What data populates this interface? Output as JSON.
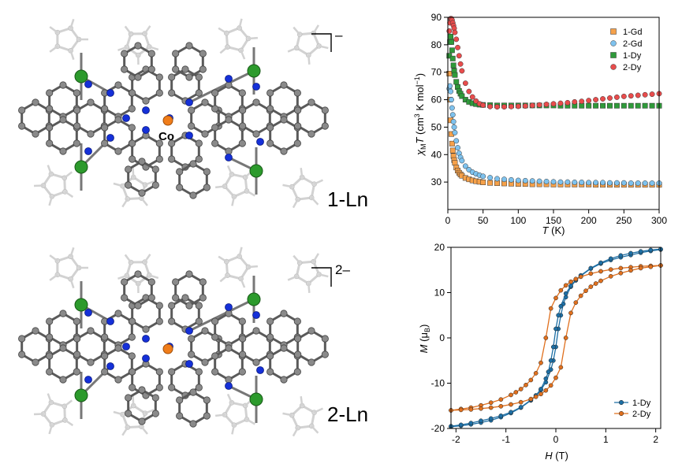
{
  "structures": [
    {
      "label": "1-Ln",
      "charge": "–",
      "atom_label": "Co"
    },
    {
      "label": "2-Ln",
      "charge": "2–"
    }
  ],
  "colors": {
    "carbon": "#7a7a7a",
    "carbon_light": "#c8c8c8",
    "nitrogen": "#1530d8",
    "cobalt": "#f07d1a",
    "lanthanide": "#2c9a2c",
    "gd1": "#f6a14a",
    "gd2": "#7ec2ee",
    "dy1": "#2f9a3a",
    "dy2": "#e84c4c",
    "hyst1": "#1d6fa5",
    "hyst2": "#e0701e"
  },
  "chart_data": [
    {
      "type": "scatter",
      "xlabel": "T (K)",
      "ylabel": "χMT (cm3 K mol−1)",
      "xlim": [
        0,
        300
      ],
      "ylim": [
        20,
        90
      ],
      "xticks": [
        0,
        50,
        100,
        150,
        200,
        250,
        300
      ],
      "yticks": [
        30,
        40,
        50,
        60,
        70,
        80,
        90
      ],
      "legend": "top-right",
      "series": [
        {
          "name": "1-Gd",
          "marker": "square",
          "color": "#f6a14a",
          "x": [
            2,
            3,
            4,
            5,
            6,
            7,
            8,
            9,
            10,
            12,
            14,
            16,
            18,
            20,
            25,
            30,
            35,
            40,
            45,
            50,
            60,
            70,
            80,
            90,
            100,
            110,
            120,
            130,
            140,
            150,
            160,
            170,
            180,
            190,
            200,
            210,
            220,
            230,
            240,
            250,
            260,
            270,
            280,
            290,
            300
          ],
          "y": [
            69.5,
            60,
            52.5,
            47.5,
            44,
            41.5,
            39.5,
            38,
            37,
            35.3,
            34.2,
            33.4,
            32.8,
            32.3,
            31.5,
            31,
            30.6,
            30.3,
            30.1,
            29.9,
            29.7,
            29.6,
            29.5,
            29.4,
            29.3,
            29.3,
            29.2,
            29.2,
            29.2,
            29.1,
            29.1,
            29.1,
            29.1,
            29.1,
            29.1,
            29,
            29,
            29,
            29,
            29,
            29,
            29,
            29,
            29,
            29
          ]
        },
        {
          "name": "2-Gd",
          "marker": "circle",
          "color": "#7ec2ee",
          "x": [
            2,
            3,
            4,
            5,
            6,
            7,
            8,
            9,
            10,
            12,
            14,
            16,
            18,
            20,
            25,
            30,
            35,
            40,
            45,
            50,
            60,
            70,
            80,
            90,
            100,
            110,
            120,
            130,
            140,
            150,
            160,
            170,
            180,
            190,
            200,
            210,
            220,
            230,
            240,
            250,
            260,
            270,
            280,
            290,
            300
          ],
          "y": [
            64,
            65,
            63,
            60,
            57,
            54.5,
            52,
            50,
            48,
            45,
            42.5,
            40.5,
            39,
            37.8,
            35.8,
            34.5,
            33.6,
            33,
            32.5,
            32.1,
            31.6,
            31.2,
            31,
            30.8,
            30.6,
            30.5,
            30.4,
            30.3,
            30.2,
            30.1,
            30,
            30,
            29.9,
            29.9,
            29.8,
            29.8,
            29.8,
            29.7,
            29.7,
            29.7,
            29.6,
            29.6,
            29.6,
            29.6,
            29.6
          ]
        },
        {
          "name": "1-Dy",
          "marker": "square",
          "color": "#2f9a3a",
          "x": [
            2,
            3,
            4,
            5,
            6,
            7,
            8,
            9,
            10,
            12,
            14,
            16,
            18,
            20,
            25,
            30,
            35,
            40,
            45,
            50,
            60,
            70,
            80,
            90,
            100,
            110,
            120,
            130,
            140,
            150,
            160,
            170,
            180,
            190,
            200,
            210,
            220,
            230,
            240,
            250,
            260,
            270,
            280,
            290,
            300
          ],
          "y": [
            76,
            81,
            83,
            81,
            78,
            75,
            72.5,
            70.5,
            69,
            66.5,
            64.6,
            63.2,
            62.2,
            61.3,
            60,
            59.2,
            58.7,
            58.4,
            58.2,
            58.1,
            58,
            57.9,
            57.9,
            57.9,
            57.9,
            57.9,
            57.9,
            57.9,
            57.9,
            57.9,
            57.8,
            57.8,
            57.8,
            57.8,
            57.8,
            57.8,
            57.8,
            57.8,
            57.8,
            57.8,
            57.8,
            57.8,
            57.8,
            57.8,
            57.8
          ]
        },
        {
          "name": "2-Dy",
          "marker": "circle",
          "color": "#e84c4c",
          "x": [
            2,
            3,
            4,
            5,
            6,
            7,
            8,
            9,
            10,
            12,
            14,
            16,
            18,
            20,
            25,
            30,
            35,
            40,
            45,
            50,
            60,
            70,
            80,
            90,
            100,
            110,
            120,
            130,
            140,
            150,
            160,
            170,
            180,
            190,
            200,
            210,
            220,
            230,
            240,
            250,
            260,
            270,
            280,
            290,
            300
          ],
          "y": [
            85,
            88,
            89.5,
            89.5,
            89,
            88,
            87,
            86,
            84.5,
            82,
            79,
            76,
            73,
            70.5,
            66,
            63,
            61,
            59.5,
            58.5,
            58,
            57.5,
            57.4,
            57.4,
            57.5,
            57.6,
            57.7,
            57.9,
            58.1,
            58.3,
            58.5,
            58.7,
            58.9,
            59.2,
            59.4,
            59.7,
            60,
            60.3,
            60.6,
            60.9,
            61.2,
            61.4,
            61.6,
            61.8,
            62,
            62.2
          ]
        }
      ]
    },
    {
      "type": "line",
      "xlabel": "H (T)",
      "ylabel": "M (μB)",
      "xlim": [
        -2.1,
        2.1
      ],
      "ylim": [
        -20,
        20
      ],
      "xticks": [
        -2,
        -1,
        0,
        1,
        2
      ],
      "yticks": [
        -20,
        -10,
        0,
        10,
        20
      ],
      "legend": "bottom-right",
      "series": [
        {
          "name": "1-Dy",
          "marker": "circle",
          "color": "#1d6fa5",
          "descending": {
            "x": [
              2.1,
              1.9,
              1.7,
              1.5,
              1.3,
              1.1,
              0.9,
              0.7,
              0.5,
              0.4,
              0.3,
              0.2,
              0.15,
              0.1,
              0.05,
              0,
              -0.05,
              -0.1,
              -0.2,
              -0.3,
              -0.4,
              -0.5,
              -0.7,
              -0.9,
              -1.1,
              -1.3,
              -1.5,
              -1.7,
              -1.9,
              -2.1
            ],
            "y": [
              19.5,
              19.2,
              18.8,
              18.3,
              17.8,
              17.2,
              16.4,
              15.3,
              13.7,
              12.7,
              11.3,
              9,
              7.5,
              5,
              2,
              -2,
              -5,
              -7,
              -9.8,
              -11.5,
              -12.8,
              -13.8,
              -15.4,
              -16.6,
              -17.5,
              -18.2,
              -18.7,
              -19.1,
              -19.4,
              -19.6
            ]
          },
          "ascending": {
            "x": [
              -2.1,
              -1.9,
              -1.7,
              -1.5,
              -1.3,
              -1.1,
              -0.9,
              -0.7,
              -0.5,
              -0.4,
              -0.3,
              -0.2,
              -0.15,
              -0.1,
              -0.05,
              0,
              0.05,
              0.1,
              0.2,
              0.3,
              0.4,
              0.5,
              0.7,
              0.9,
              1.1,
              1.3,
              1.5,
              1.7,
              1.9,
              2.1
            ],
            "y": [
              -19.5,
              -19.2,
              -18.8,
              -18.3,
              -17.8,
              -17.2,
              -16.4,
              -15.3,
              -13.7,
              -12.7,
              -11.3,
              -9,
              -7.5,
              -5,
              -2,
              2,
              5,
              7,
              9.8,
              11.5,
              12.8,
              13.8,
              15.4,
              16.6,
              17.5,
              18.2,
              18.7,
              19.1,
              19.4,
              19.6
            ]
          }
        },
        {
          "name": "2-Dy",
          "marker": "circle",
          "color": "#e0701e",
          "descending": {
            "x": [
              2.1,
              1.9,
              1.7,
              1.5,
              1.3,
              1.1,
              0.9,
              0.7,
              0.5,
              0.4,
              0.3,
              0.2,
              0.1,
              0,
              -0.1,
              -0.2,
              -0.3,
              -0.4,
              -0.5,
              -0.6,
              -0.7,
              -0.8,
              -0.9,
              -1.1,
              -1.3,
              -1.5,
              -1.7,
              -1.9,
              -2.1
            ],
            "y": [
              16,
              15.9,
              15.8,
              15.6,
              15.4,
              15.1,
              14.7,
              14.2,
              13.5,
              13,
              12.4,
              11.6,
              10.5,
              8.8,
              6.5,
              0,
              -5.5,
              -7.8,
              -9.3,
              -10.4,
              -11.3,
              -12,
              -12.6,
              -13.6,
              -14.3,
              -14.9,
              -15.4,
              -15.7,
              -16
            ]
          },
          "ascending": {
            "x": [
              -2.1,
              -1.9,
              -1.7,
              -1.5,
              -1.3,
              -1.1,
              -0.9,
              -0.7,
              -0.5,
              -0.4,
              -0.3,
              -0.2,
              -0.1,
              0,
              0.1,
              0.2,
              0.3,
              0.4,
              0.5,
              0.6,
              0.7,
              0.8,
              0.9,
              1.1,
              1.3,
              1.5,
              1.7,
              1.9,
              2.1
            ],
            "y": [
              -16,
              -15.9,
              -15.8,
              -15.6,
              -15.4,
              -15.1,
              -14.7,
              -14.2,
              -13.5,
              -13,
              -12.4,
              -11.6,
              -10.5,
              -8.8,
              -6.5,
              0,
              5.5,
              7.8,
              9.3,
              10.4,
              11.3,
              12,
              12.6,
              13.6,
              14.3,
              14.9,
              15.4,
              15.7,
              16
            ]
          }
        }
      ]
    }
  ]
}
